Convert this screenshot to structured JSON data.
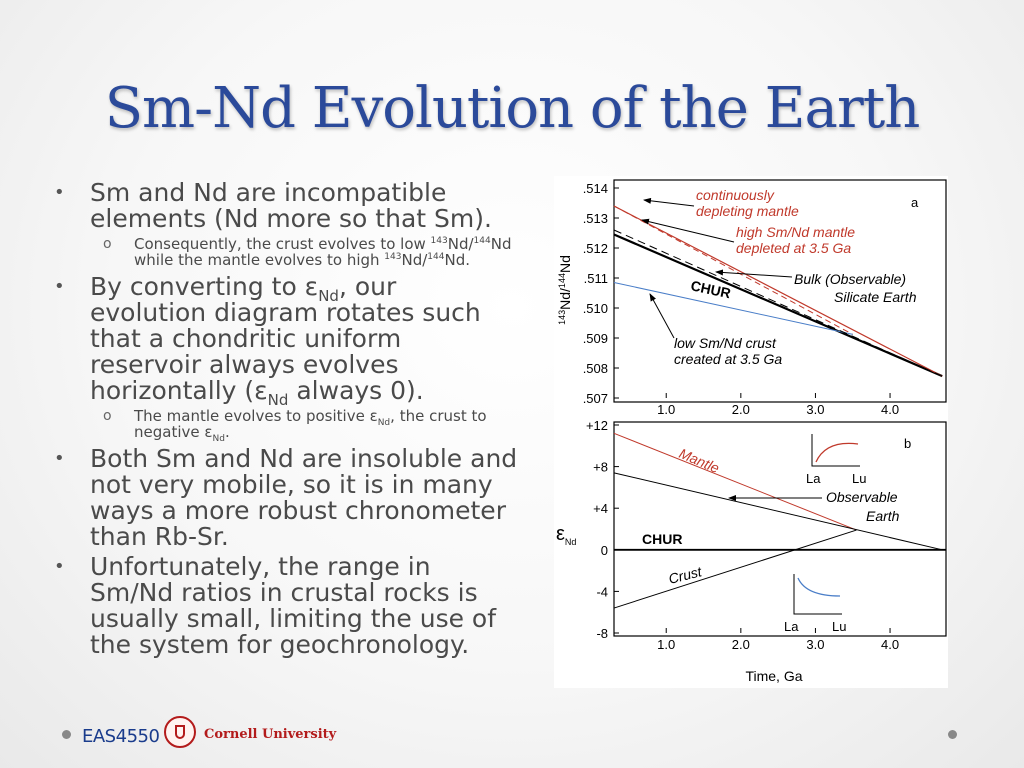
{
  "title": "Sm-Nd Evolution of the Earth",
  "bullets": [
    {
      "pre": "Sm and Nd are incompatible elements (Nd more so that Sm).",
      "subs": [
        {
          "pre": "Consequently, the crust evolves to low ",
          "sup1": "143",
          "mid1": "Nd/",
          "sup2": "144",
          "mid2": "Nd while the mantle evolves to high ",
          "sup3": "143",
          "mid3": "Nd/",
          "sup4": "144",
          "post": "Nd."
        }
      ]
    },
    {
      "pre": "By converting to ε",
      "sub": "Nd",
      "mid": ", our evolution diagram rotates such that a chondritic uniform reservoir always evolves horizontally (ε",
      "sub2": "Nd",
      "post": " always 0).",
      "subs": [
        {
          "pre": "The mantle evolves to positive ε",
          "sub1": "Nd",
          "mid": ", the crust to negative ε",
          "sub2": "Nd",
          "post": "."
        }
      ]
    },
    {
      "text": "Both Sm and Nd are insoluble and not very mobile, so it is in many ways a more robust chronometer than Rb-Sr."
    },
    {
      "text": "Unfortunately, the range in Sm/Nd ratios in crustal rocks is usually small, limiting the use of the system for geochronology."
    }
  ],
  "footer": {
    "course": "EAS4550",
    "university": "Cornell University"
  },
  "colors": {
    "title": "#2b4a9a",
    "annotation_red": "#c0392b",
    "crust_blue": "#4a7ec8",
    "line": "#000000"
  },
  "chart_data": [
    {
      "type": "line",
      "panel_label": "a",
      "ylabel_sup": "143",
      "ylabel_mid": "Nd/",
      "ylabel_sup2": "144",
      "ylabel_post": "Nd",
      "ylim": [
        0.507,
        0.514
      ],
      "yticks": [
        ".514",
        ".513",
        ".512",
        ".511",
        ".510",
        ".509",
        ".508",
        ".507"
      ],
      "ytick_values": [
        0.514,
        0.513,
        0.512,
        0.511,
        0.51,
        0.509,
        0.508,
        0.507
      ],
      "xlim": [
        0.3,
        4.75
      ],
      "xticks": [
        "1.0",
        "2.0",
        "3.0",
        "4.0"
      ],
      "xtick_values": [
        1.0,
        2.0,
        3.0,
        4.0
      ],
      "series": [
        {
          "name": "CHUR",
          "points": [
            [
              0.3,
              0.51245
            ],
            [
              4.7,
              0.50773
            ]
          ]
        },
        {
          "points": [
            [
              0.3,
              0.5134
            ],
            [
              4.7,
              0.50773
            ]
          ]
        },
        {
          "points": [
            [
              0.3,
              0.5134
            ],
            [
              3.5,
              0.50912
            ]
          ]
        },
        {
          "points": [
            [
              0.3,
              0.51085
            ],
            [
              3.5,
              0.50912
            ]
          ]
        },
        {
          "points": [
            [
              0.3,
              0.5126
            ],
            [
              4.7,
              0.50773
            ]
          ]
        }
      ],
      "annotations": [
        "continuously depleting mantle",
        "high Sm/Nd mantle depleted at 3.5 Ga",
        "Bulk (Observable) Silicate Earth",
        "CHUR",
        "low Sm/Nd crust created at 3.5 Ga"
      ]
    },
    {
      "type": "line",
      "panel_label": "b",
      "ylabel": "ε",
      "ylabel_sub": "Nd",
      "xlabel": "Time, Ga",
      "ylim": [
        -8,
        12
      ],
      "yticks": [
        "+12",
        "+8",
        "+4",
        "0",
        "-4",
        "-8"
      ],
      "ytick_values": [
        12,
        8,
        4,
        0,
        -4,
        -8
      ],
      "xlim": [
        0.3,
        4.75
      ],
      "xticks": [
        "1.0",
        "2.0",
        "3.0",
        "4.0"
      ],
      "xtick_values": [
        1.0,
        2.0,
        3.0,
        4.0
      ],
      "series": [
        {
          "name": "CHUR",
          "points": [
            [
              0.3,
              0
            ],
            [
              4.75,
              0
            ]
          ]
        },
        {
          "name": "Mantle",
          "points": [
            [
              0.3,
              11.2
            ],
            [
              3.55,
              1.9
            ]
          ]
        },
        {
          "points": [
            [
              0.3,
              7.4
            ],
            [
              4.7,
              0
            ]
          ]
        },
        {
          "name": "Crust",
          "points": [
            [
              0.3,
              -5.6
            ],
            [
              3.55,
              1.9
            ]
          ]
        }
      ],
      "annotations": [
        "Mantle",
        "Observable Earth",
        "CHUR",
        "Crust"
      ],
      "inset_labels": [
        "La",
        "Lu"
      ]
    }
  ]
}
